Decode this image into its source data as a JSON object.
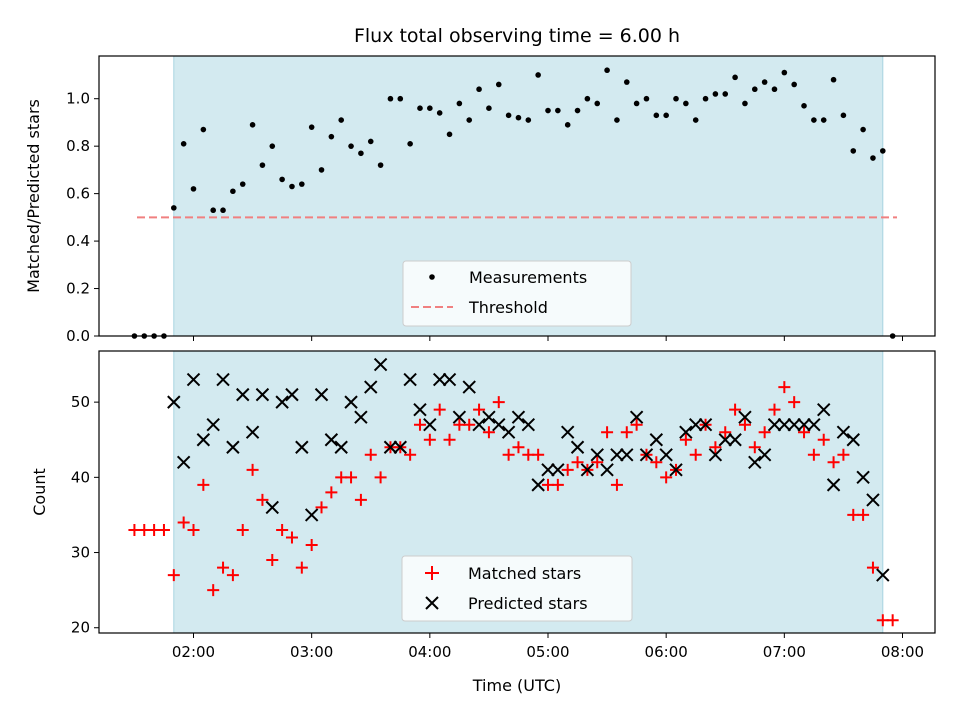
{
  "chart_data": {
    "type": "scatter",
    "title": "Flux total observing time = 6.00 h",
    "xlabel": "Time (UTC)",
    "x_ticks": [
      "02:00",
      "03:00",
      "04:00",
      "05:00",
      "06:00",
      "07:00",
      "08:00"
    ],
    "colors": {
      "observing_window": "#d3eaf0",
      "measurements": "#000000",
      "threshold": "#f08080",
      "matched": "#ff0000",
      "predicted": "#000000"
    },
    "observing_window": {
      "start": "01:50",
      "end": "07:50"
    },
    "panels": [
      {
        "ylabel": "Matched/Predicted stars",
        "ylim": [
          0,
          1.18
        ],
        "y_ticks": [
          "0.0",
          "0.2",
          "0.4",
          "0.6",
          "0.8",
          "1.0"
        ],
        "legend_placement": "lower-center",
        "legend": [
          "Measurements",
          "Threshold"
        ],
        "threshold": 0.5,
        "series": [
          {
            "name": "Measurements",
            "marker": "dot",
            "points": [
              [
                "01:30",
                0.0
              ],
              [
                "01:35",
                0.0
              ],
              [
                "01:40",
                0.0
              ],
              [
                "01:45",
                0.0
              ],
              [
                "01:50",
                0.54
              ],
              [
                "01:55",
                0.81
              ],
              [
                "02:00",
                0.62
              ],
              [
                "02:05",
                0.87
              ],
              [
                "02:10",
                0.53
              ],
              [
                "02:15",
                0.53
              ],
              [
                "02:20",
                0.61
              ],
              [
                "02:25",
                0.64
              ],
              [
                "02:30",
                0.89
              ],
              [
                "02:35",
                0.72
              ],
              [
                "02:40",
                0.8
              ],
              [
                "02:45",
                0.66
              ],
              [
                "02:50",
                0.63
              ],
              [
                "02:55",
                0.64
              ],
              [
                "03:00",
                0.88
              ],
              [
                "03:05",
                0.7
              ],
              [
                "03:10",
                0.84
              ],
              [
                "03:15",
                0.91
              ],
              [
                "03:20",
                0.8
              ],
              [
                "03:25",
                0.77
              ],
              [
                "03:30",
                0.82
              ],
              [
                "03:35",
                0.72
              ],
              [
                "03:40",
                1.0
              ],
              [
                "03:45",
                1.0
              ],
              [
                "03:50",
                0.81
              ],
              [
                "03:55",
                0.96
              ],
              [
                "04:00",
                0.96
              ],
              [
                "04:05",
                0.94
              ],
              [
                "04:10",
                0.85
              ],
              [
                "04:15",
                0.98
              ],
              [
                "04:20",
                0.91
              ],
              [
                "04:25",
                1.04
              ],
              [
                "04:30",
                0.96
              ],
              [
                "04:35",
                1.06
              ],
              [
                "04:40",
                0.93
              ],
              [
                "04:45",
                0.92
              ],
              [
                "04:50",
                0.91
              ],
              [
                "04:55",
                1.1
              ],
              [
                "05:00",
                0.95
              ],
              [
                "05:05",
                0.95
              ],
              [
                "05:10",
                0.89
              ],
              [
                "05:15",
                0.95
              ],
              [
                "05:20",
                1.0
              ],
              [
                "05:25",
                0.98
              ],
              [
                "05:30",
                1.12
              ],
              [
                "05:35",
                0.91
              ],
              [
                "05:40",
                1.07
              ],
              [
                "05:45",
                0.98
              ],
              [
                "05:50",
                1.0
              ],
              [
                "05:55",
                0.93
              ],
              [
                "06:00",
                0.93
              ],
              [
                "06:05",
                1.0
              ],
              [
                "06:10",
                0.98
              ],
              [
                "06:15",
                0.91
              ],
              [
                "06:20",
                1.0
              ],
              [
                "06:25",
                1.02
              ],
              [
                "06:30",
                1.02
              ],
              [
                "06:35",
                1.09
              ],
              [
                "06:40",
                0.98
              ],
              [
                "06:45",
                1.04
              ],
              [
                "06:50",
                1.07
              ],
              [
                "06:55",
                1.04
              ],
              [
                "07:00",
                1.11
              ],
              [
                "07:05",
                1.06
              ],
              [
                "07:10",
                0.97
              ],
              [
                "07:15",
                0.91
              ],
              [
                "07:20",
                0.91
              ],
              [
                "07:25",
                1.08
              ],
              [
                "07:30",
                0.93
              ],
              [
                "07:35",
                0.78
              ],
              [
                "07:40",
                0.87
              ],
              [
                "07:45",
                0.75
              ],
              [
                "07:50",
                0.78
              ],
              [
                "07:55",
                0.0
              ]
            ]
          }
        ]
      },
      {
        "ylabel": "Count",
        "ylim": [
          19.3,
          56.8
        ],
        "y_ticks": [
          "20",
          "30",
          "40",
          "50"
        ],
        "legend_placement": "lower-center",
        "legend": [
          "Matched stars",
          "Predicted stars"
        ],
        "series": [
          {
            "name": "Matched stars",
            "marker": "plus",
            "points": [
              [
                "01:30",
                33
              ],
              [
                "01:35",
                33
              ],
              [
                "01:40",
                33
              ],
              [
                "01:45",
                33
              ],
              [
                "01:50",
                27
              ],
              [
                "01:55",
                34
              ],
              [
                "02:00",
                33
              ],
              [
                "02:05",
                39
              ],
              [
                "02:10",
                25
              ],
              [
                "02:15",
                28
              ],
              [
                "02:20",
                27
              ],
              [
                "02:25",
                33
              ],
              [
                "02:30",
                41
              ],
              [
                "02:35",
                37
              ],
              [
                "02:40",
                29
              ],
              [
                "02:45",
                33
              ],
              [
                "02:50",
                32
              ],
              [
                "02:55",
                28
              ],
              [
                "03:00",
                31
              ],
              [
                "03:05",
                36
              ],
              [
                "03:10",
                38
              ],
              [
                "03:15",
                40
              ],
              [
                "03:20",
                40
              ],
              [
                "03:25",
                37
              ],
              [
                "03:30",
                43
              ],
              [
                "03:35",
                40
              ],
              [
                "03:40",
                44
              ],
              [
                "03:45",
                44
              ],
              [
                "03:50",
                43
              ],
              [
                "03:55",
                47
              ],
              [
                "04:00",
                45
              ],
              [
                "04:05",
                49
              ],
              [
                "04:10",
                45
              ],
              [
                "04:15",
                47
              ],
              [
                "04:20",
                47
              ],
              [
                "04:25",
                49
              ],
              [
                "04:30",
                46
              ],
              [
                "04:35",
                50
              ],
              [
                "04:40",
                43
              ],
              [
                "04:45",
                44
              ],
              [
                "04:50",
                43
              ],
              [
                "04:55",
                43
              ],
              [
                "05:00",
                39
              ],
              [
                "05:05",
                39
              ],
              [
                "05:10",
                41
              ],
              [
                "05:15",
                42
              ],
              [
                "05:20",
                41
              ],
              [
                "05:25",
                42
              ],
              [
                "05:30",
                46
              ],
              [
                "05:35",
                39
              ],
              [
                "05:40",
                46
              ],
              [
                "05:45",
                47
              ],
              [
                "05:50",
                43
              ],
              [
                "05:55",
                42
              ],
              [
                "06:00",
                40
              ],
              [
                "06:05",
                41
              ],
              [
                "06:10",
                45
              ],
              [
                "06:15",
                43
              ],
              [
                "06:20",
                47
              ],
              [
                "06:25",
                44
              ],
              [
                "06:30",
                46
              ],
              [
                "06:35",
                49
              ],
              [
                "06:40",
                47
              ],
              [
                "06:45",
                44
              ],
              [
                "06:50",
                46
              ],
              [
                "06:55",
                49
              ],
              [
                "07:00",
                52
              ],
              [
                "07:05",
                50
              ],
              [
                "07:10",
                46
              ],
              [
                "07:15",
                43
              ],
              [
                "07:20",
                45
              ],
              [
                "07:25",
                42
              ],
              [
                "07:30",
                43
              ],
              [
                "07:35",
                35
              ],
              [
                "07:40",
                35
              ],
              [
                "07:45",
                28
              ],
              [
                "07:50",
                21
              ],
              [
                "07:55",
                21
              ]
            ]
          },
          {
            "name": "Predicted stars",
            "marker": "x",
            "points": [
              [
                "01:50",
                50
              ],
              [
                "01:55",
                42
              ],
              [
                "02:00",
                53
              ],
              [
                "02:05",
                45
              ],
              [
                "02:10",
                47
              ],
              [
                "02:15",
                53
              ],
              [
                "02:20",
                44
              ],
              [
                "02:25",
                51
              ],
              [
                "02:30",
                46
              ],
              [
                "02:35",
                51
              ],
              [
                "02:40",
                36
              ],
              [
                "02:45",
                50
              ],
              [
                "02:50",
                51
              ],
              [
                "02:55",
                44
              ],
              [
                "03:00",
                35
              ],
              [
                "03:05",
                51
              ],
              [
                "03:10",
                45
              ],
              [
                "03:15",
                44
              ],
              [
                "03:20",
                50
              ],
              [
                "03:25",
                48
              ],
              [
                "03:30",
                52
              ],
              [
                "03:35",
                55
              ],
              [
                "03:40",
                44
              ],
              [
                "03:45",
                44
              ],
              [
                "03:50",
                53
              ],
              [
                "03:55",
                49
              ],
              [
                "04:00",
                47
              ],
              [
                "04:05",
                53
              ],
              [
                "04:10",
                53
              ],
              [
                "04:15",
                48
              ],
              [
                "04:20",
                52
              ],
              [
                "04:25",
                47
              ],
              [
                "04:30",
                48
              ],
              [
                "04:35",
                47
              ],
              [
                "04:40",
                46
              ],
              [
                "04:45",
                48
              ],
              [
                "04:50",
                47
              ],
              [
                "04:55",
                39
              ],
              [
                "05:00",
                41
              ],
              [
                "05:05",
                41
              ],
              [
                "05:10",
                46
              ],
              [
                "05:15",
                44
              ],
              [
                "05:20",
                41
              ],
              [
                "05:25",
                43
              ],
              [
                "05:30",
                41
              ],
              [
                "05:35",
                43
              ],
              [
                "05:40",
                43
              ],
              [
                "05:45",
                48
              ],
              [
                "05:50",
                43
              ],
              [
                "05:55",
                45
              ],
              [
                "06:00",
                43
              ],
              [
                "06:05",
                41
              ],
              [
                "06:10",
                46
              ],
              [
                "06:15",
                47
              ],
              [
                "06:20",
                47
              ],
              [
                "06:25",
                43
              ],
              [
                "06:30",
                45
              ],
              [
                "06:35",
                45
              ],
              [
                "06:40",
                48
              ],
              [
                "06:45",
                42
              ],
              [
                "06:50",
                43
              ],
              [
                "06:55",
                47
              ],
              [
                "07:00",
                47
              ],
              [
                "07:05",
                47
              ],
              [
                "07:10",
                47
              ],
              [
                "07:15",
                47
              ],
              [
                "07:20",
                49
              ],
              [
                "07:25",
                39
              ],
              [
                "07:30",
                46
              ],
              [
                "07:35",
                45
              ],
              [
                "07:40",
                40
              ],
              [
                "07:45",
                37
              ],
              [
                "07:50",
                27
              ]
            ]
          }
        ]
      }
    ]
  }
}
